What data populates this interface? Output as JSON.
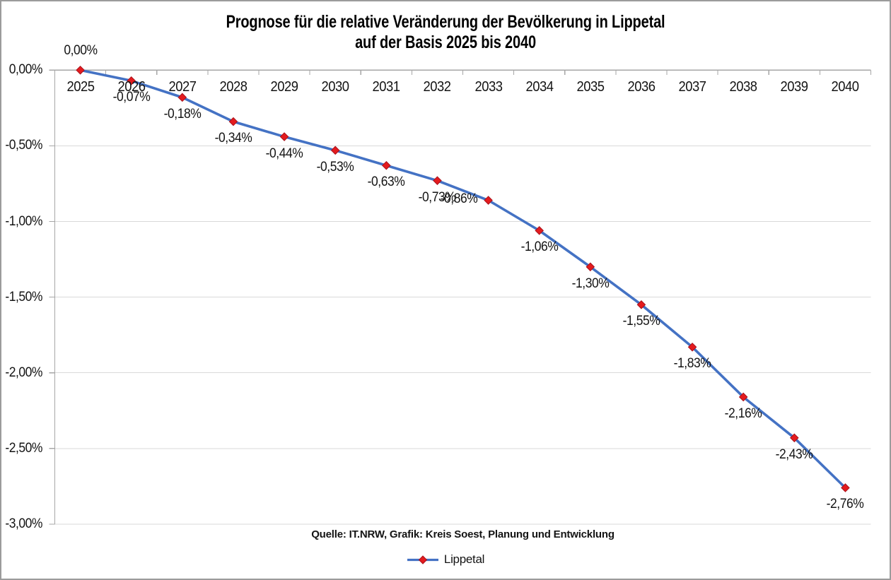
{
  "title": {
    "line1": "Prognose für die relative Veränderung der Bevölkerung in Lippetal",
    "line2": "auf der Basis 2025 bis 2040"
  },
  "source_note": "Quelle: IT.NRW, Grafik: Kreis Soest, Planung und Entwicklung",
  "legend": {
    "label": "Lippetal"
  },
  "colors": {
    "line": "#4472C4",
    "marker_fill": "#E41B1E",
    "marker_stroke": "#A9121C",
    "gridline": "#D9D9D9",
    "axis": "#A6A6A6",
    "text": "#141414",
    "border": "#9B9B9B"
  },
  "chart_data": {
    "type": "line",
    "title": "Prognose für die relative Veränderung der Bevölkerung in Lippetal auf der Basis 2025 bis 2040",
    "categories": [
      "2025",
      "2026",
      "2027",
      "2028",
      "2029",
      "2030",
      "2031",
      "2032",
      "2033",
      "2034",
      "2035",
      "2036",
      "2037",
      "2038",
      "2039",
      "2040"
    ],
    "series": [
      {
        "name": "Lippetal",
        "values": [
          0.0,
          -0.07,
          -0.18,
          -0.34,
          -0.44,
          -0.53,
          -0.63,
          -0.73,
          -0.86,
          -1.06,
          -1.3,
          -1.55,
          -1.83,
          -2.16,
          -2.43,
          -2.76
        ],
        "labels": [
          "0,00%",
          "-0,07%",
          "-0,18%",
          "-0,34%",
          "-0,44%",
          "-0,53%",
          "-0,63%",
          "-0,73%",
          "-0,86%",
          "-1,06%",
          "-1,30%",
          "-1,55%",
          "-1,83%",
          "-2,16%",
          "-2,43%",
          "-2,76%"
        ]
      }
    ],
    "xlabel": "",
    "ylabel": "",
    "ylim": [
      -3,
      0
    ],
    "ytick_step": 0.5,
    "ytick_labels": [
      "0,00%",
      "-0,50%",
      "-1,00%",
      "-1,50%",
      "-2,00%",
      "-2,50%",
      "-3,00%"
    ],
    "grid": true,
    "legend_position": "bottom",
    "label_default_offset": {
      "dx": 0,
      "dy": 24
    },
    "label_offsets": {
      "0": {
        "dx": 0,
        "dy": -27
      },
      "8": {
        "dx": -42,
        "dy": -2
      }
    }
  }
}
